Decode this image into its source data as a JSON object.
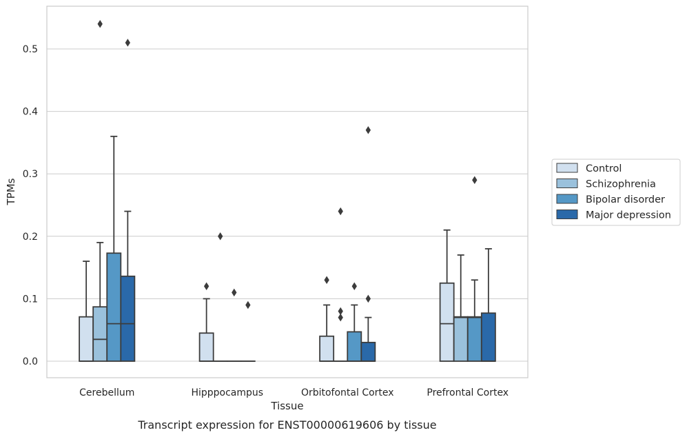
{
  "chart_data": {
    "type": "box",
    "caption": "Transcript expression for ENST00000619606 by tissue",
    "xlabel": "Tissue",
    "ylabel": "TPMs",
    "ylim": [
      -0.026,
      0.568
    ],
    "yticks": [
      "0.0",
      "0.1",
      "0.2",
      "0.3",
      "0.4",
      "0.5"
    ],
    "ytick_values": [
      0.0,
      0.1,
      0.2,
      0.3,
      0.4,
      0.5
    ],
    "grid": "horizontal",
    "legend_position": "right",
    "categories": [
      "Cerebellum",
      "Hipppocampus",
      "Orbitofontal Cortex",
      "Prefrontal Cortex"
    ],
    "series": [
      {
        "name": "Control",
        "color": "#d1e0ef",
        "boxes": [
          {
            "q1": 0.0,
            "median": 0.0,
            "q3": 0.071,
            "whisker_low": 0.0,
            "whisker_high": 0.16,
            "outliers": []
          },
          {
            "q1": 0.0,
            "median": 0.0,
            "q3": 0.045,
            "whisker_low": 0.0,
            "whisker_high": 0.1,
            "outliers": [
              0.12
            ]
          },
          {
            "q1": 0.0,
            "median": 0.0,
            "q3": 0.04,
            "whisker_low": 0.0,
            "whisker_high": 0.09,
            "outliers": [
              0.13
            ]
          },
          {
            "q1": 0.0,
            "median": 0.06,
            "q3": 0.125,
            "whisker_low": 0.0,
            "whisker_high": 0.21,
            "outliers": []
          }
        ]
      },
      {
        "name": "Schizophrenia",
        "color": "#9ac1dc",
        "boxes": [
          {
            "q1": 0.0,
            "median": 0.035,
            "q3": 0.087,
            "whisker_low": 0.0,
            "whisker_high": 0.19,
            "outliers": [
              0.54
            ]
          },
          {
            "q1": 0.0,
            "median": 0.0,
            "q3": 0.0,
            "whisker_low": 0.0,
            "whisker_high": 0.0,
            "outliers": [
              0.2
            ]
          },
          {
            "q1": 0.0,
            "median": 0.0,
            "q3": 0.0,
            "whisker_low": 0.0,
            "whisker_high": 0.0,
            "outliers": [
              0.24,
              0.08,
              0.07
            ]
          },
          {
            "q1": 0.0,
            "median": 0.07,
            "q3": 0.071,
            "whisker_low": 0.0,
            "whisker_high": 0.17,
            "outliers": []
          }
        ]
      },
      {
        "name": "Bipolar disorder",
        "color": "#5598c6",
        "boxes": [
          {
            "q1": 0.0,
            "median": 0.06,
            "q3": 0.173,
            "whisker_low": 0.0,
            "whisker_high": 0.36,
            "outliers": []
          },
          {
            "q1": 0.0,
            "median": 0.0,
            "q3": 0.0,
            "whisker_low": 0.0,
            "whisker_high": 0.0,
            "outliers": [
              0.11
            ]
          },
          {
            "q1": 0.0,
            "median": 0.0,
            "q3": 0.047,
            "whisker_low": 0.0,
            "whisker_high": 0.09,
            "outliers": [
              0.12
            ]
          },
          {
            "q1": 0.0,
            "median": 0.07,
            "q3": 0.071,
            "whisker_low": 0.0,
            "whisker_high": 0.13,
            "outliers": [
              0.29
            ]
          }
        ]
      },
      {
        "name": "Major depression",
        "color": "#2a69a9",
        "boxes": [
          {
            "q1": 0.0,
            "median": 0.06,
            "q3": 0.136,
            "whisker_low": 0.0,
            "whisker_high": 0.24,
            "outliers": [
              0.51
            ]
          },
          {
            "q1": 0.0,
            "median": 0.0,
            "q3": 0.0,
            "whisker_low": 0.0,
            "whisker_high": 0.0,
            "outliers": [
              0.09
            ]
          },
          {
            "q1": 0.0,
            "median": 0.0,
            "q3": 0.03,
            "whisker_low": 0.0,
            "whisker_high": 0.07,
            "outliers": [
              0.1,
              0.37
            ]
          },
          {
            "q1": 0.0,
            "median": 0.0,
            "q3": 0.077,
            "whisker_low": 0.0,
            "whisker_high": 0.18,
            "outliers": []
          }
        ]
      }
    ]
  }
}
